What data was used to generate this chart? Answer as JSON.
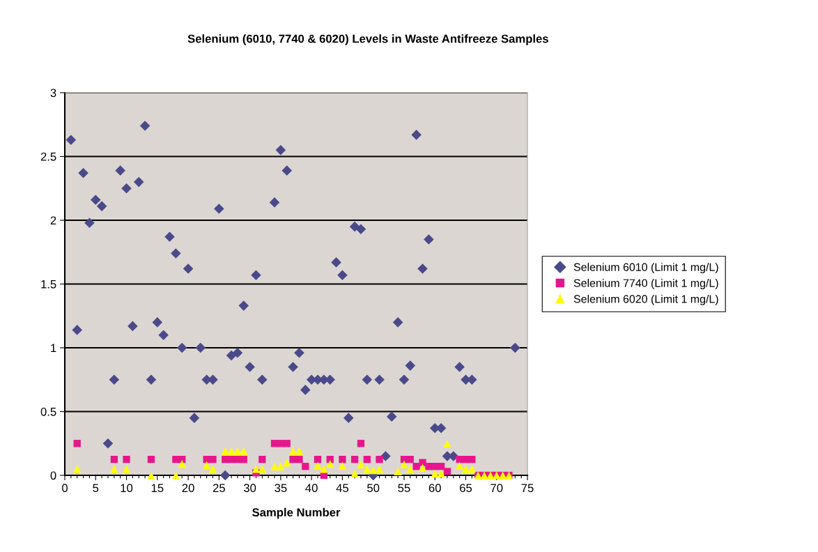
{
  "chart_data": {
    "type": "scatter",
    "title": "Selenium (6010, 7740 & 6020) Levels in Waste Antifreeze Samples",
    "xlabel": "Sample Number",
    "xlim": [
      0,
      75
    ],
    "ylim": [
      0,
      3
    ],
    "xticks": [
      0,
      {
        "value": 1,
        "label": null
      },
      {
        "value": 2,
        "label": null
      },
      {
        "value": 3,
        "label": null
      },
      {
        "value": 4,
        "label": null
      },
      5,
      {
        "value": 6,
        "label": null
      },
      {
        "value": 7,
        "label": null
      },
      {
        "value": 8,
        "label": null
      },
      {
        "value": 9,
        "label": null
      },
      10,
      {
        "value": 11,
        "label": null
      },
      {
        "value": 12,
        "label": null
      },
      {
        "value": 13,
        "label": null
      },
      {
        "value": 14,
        "label": null
      },
      15,
      {
        "value": 16,
        "label": null
      },
      {
        "value": 17,
        "label": null
      },
      {
        "value": 18,
        "label": null
      },
      {
        "value": 19,
        "label": null
      },
      20,
      {
        "value": 21,
        "label": null
      },
      {
        "value": 22,
        "label": null
      },
      {
        "value": 23,
        "label": null
      },
      {
        "value": 24,
        "label": null
      },
      25,
      {
        "value": 26,
        "label": null
      },
      {
        "value": 27,
        "label": null
      },
      {
        "value": 28,
        "label": null
      },
      {
        "value": 29,
        "label": null
      },
      30,
      {
        "value": 31,
        "label": null
      },
      {
        "value": 32,
        "label": null
      },
      {
        "value": 33,
        "label": null
      },
      {
        "value": 34,
        "label": null
      },
      35,
      {
        "value": 36,
        "label": null
      },
      {
        "value": 37,
        "label": null
      },
      {
        "value": 38,
        "label": null
      },
      {
        "value": 39,
        "label": null
      },
      40,
      {
        "value": 41,
        "label": null
      },
      {
        "value": 42,
        "label": null
      },
      {
        "value": 43,
        "label": null
      },
      {
        "value": 44,
        "label": null
      },
      45,
      {
        "value": 46,
        "label": null
      },
      {
        "value": 47,
        "label": null
      },
      {
        "value": 48,
        "label": null
      },
      {
        "value": 49,
        "label": null
      },
      50,
      {
        "value": 51,
        "label": null
      },
      {
        "value": 52,
        "label": null
      },
      {
        "value": 53,
        "label": null
      },
      {
        "value": 54,
        "label": null
      },
      55,
      {
        "value": 56,
        "label": null
      },
      {
        "value": 57,
        "label": null
      },
      {
        "value": 58,
        "label": null
      },
      {
        "value": 59,
        "label": null
      },
      60,
      {
        "value": 61,
        "label": null
      },
      {
        "value": 62,
        "label": null
      },
      {
        "value": 63,
        "label": null
      },
      {
        "value": 64,
        "label": null
      },
      65,
      {
        "value": 66,
        "label": null
      },
      {
        "value": 67,
        "label": null
      },
      {
        "value": 68,
        "label": null
      },
      {
        "value": 69,
        "label": null
      },
      70,
      {
        "value": 71,
        "label": null
      },
      {
        "value": 72,
        "label": null
      },
      {
        "value": 73,
        "label": null
      },
      {
        "value": 74,
        "label": null
      },
      75
    ],
    "yticks": [
      0,
      0.5,
      1,
      1.5,
      2,
      2.5,
      3
    ],
    "grid": "y",
    "legend": "right",
    "series": [
      {
        "name": "Selenium 6010 (Limit 1 mg/L)",
        "color": "#4a4a8a",
        "marker": "diamond",
        "x": [
          1,
          2,
          3,
          4,
          5,
          6,
          7,
          8,
          9,
          10,
          11,
          12,
          13,
          14,
          15,
          16,
          17,
          18,
          19,
          20,
          21,
          22,
          23,
          24,
          25,
          26,
          27,
          28,
          29,
          30,
          31,
          32,
          34,
          35,
          36,
          37,
          38,
          39,
          40,
          41,
          42,
          43,
          44,
          45,
          46,
          47,
          48,
          49,
          50,
          51,
          52,
          53,
          54,
          55,
          56,
          57,
          58,
          59,
          60,
          61,
          62,
          63,
          64,
          65,
          66,
          73
        ],
        "values": [
          2.63,
          1.14,
          2.37,
          1.98,
          2.16,
          2.11,
          0.25,
          0.75,
          2.39,
          2.25,
          1.17,
          2.3,
          2.74,
          0.75,
          1.2,
          1.1,
          1.87,
          1.74,
          1.0,
          1.62,
          0.45,
          1.0,
          0.75,
          0.75,
          2.09,
          0,
          0.94,
          0.96,
          1.33,
          0.85,
          1.57,
          0.75,
          2.14,
          2.55,
          2.39,
          0.85,
          0.96,
          0.67,
          0.75,
          0.75,
          0.75,
          0.75,
          1.67,
          1.57,
          0.45,
          1.95,
          1.93,
          0.75,
          0,
          0.75,
          0.15,
          0.46,
          1.2,
          0.75,
          0.86,
          2.67,
          1.62,
          1.85,
          0.37,
          0.37,
          0.15,
          0.15,
          0.85,
          0.75,
          0.75,
          1.0
        ]
      },
      {
        "name": "Selenium 7740 (Limit 1 mg/L)",
        "color": "#e8168c",
        "marker": "square",
        "x": [
          2,
          8,
          10,
          14,
          18,
          19,
          23,
          24,
          26,
          27,
          28,
          29,
          31,
          32,
          34,
          35,
          36,
          37,
          38,
          39,
          41,
          42,
          43,
          45,
          47,
          48,
          49,
          51,
          54,
          55,
          56,
          57,
          58,
          59,
          60,
          61,
          62,
          64,
          65,
          66,
          67,
          68,
          69,
          70,
          71,
          72
        ],
        "values": [
          0.25,
          0.125,
          0.125,
          0.125,
          0.125,
          0.125,
          0.125,
          0.125,
          0.125,
          0.125,
          0.125,
          0.125,
          0.02,
          0.125,
          0.25,
          0.25,
          0.25,
          0.125,
          0.125,
          0.07,
          0.125,
          0,
          0.125,
          0.125,
          0.125,
          0.25,
          0.125,
          0.125,
          null,
          0.125,
          0.125,
          0.07,
          0.1,
          0.07,
          0.07,
          0.07,
          0.03,
          0.125,
          0.125,
          0.125,
          0,
          0,
          0,
          0,
          0,
          0
        ]
      },
      {
        "name": "Selenium 6020 (Limit 1 mg/L)",
        "color": "#ffff00",
        "marker": "triangle",
        "x": [
          2,
          8,
          10,
          14,
          18,
          19,
          23,
          24,
          26,
          27,
          28,
          29,
          31,
          32,
          34,
          35,
          36,
          37,
          38,
          41,
          42,
          43,
          45,
          47,
          48,
          49,
          50,
          51,
          54,
          55,
          56,
          58,
          60,
          61,
          62,
          64,
          65,
          66,
          67,
          68,
          69,
          70,
          71,
          72
        ],
        "values": [
          0.05,
          0.05,
          0.05,
          0,
          0,
          0.09,
          0.08,
          0.05,
          0.19,
          0.19,
          0.19,
          0.19,
          0.05,
          0.05,
          0.07,
          0.07,
          0.1,
          0.19,
          0.19,
          0.075,
          0.05,
          0.09,
          0.075,
          0.015,
          0.085,
          0.05,
          0.04,
          0.05,
          0.03,
          0.085,
          0.05,
          0.06,
          0.015,
          0.015,
          0.25,
          0.075,
          0.05,
          0.05,
          0,
          0,
          0,
          0,
          0,
          0
        ]
      }
    ]
  }
}
